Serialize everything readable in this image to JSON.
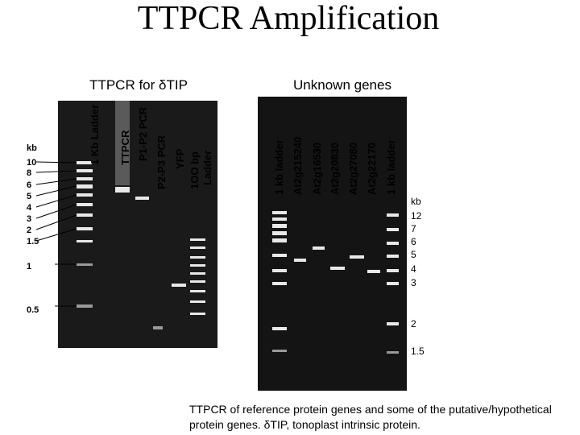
{
  "header": {
    "title": "TTPCR Amplification"
  },
  "left_panel": {
    "title": "TTPCR for δTIP",
    "lanes": [
      "1 Kb Ladder",
      "TTPCR",
      "P1-P2 PCR",
      "P2-P3 PCR",
      "YFP",
      "1OO bp",
      "Ladder"
    ],
    "size_unit": "kb",
    "sizes": [
      "10",
      "8",
      "6",
      "5",
      "4",
      "3",
      "2",
      "1.5",
      "1",
      "0.5"
    ]
  },
  "right_panel": {
    "title": "Unknown genes",
    "lanes": [
      "1 kb ladder",
      "At2g215240",
      "At2g16530",
      "At2g20830",
      "At2g27080",
      "At2g22170",
      "1 kb ladder"
    ],
    "size_unit": "kb",
    "sizes": [
      "12",
      "7",
      "6",
      "5",
      "4",
      "3",
      "2",
      "1.5"
    ]
  },
  "caption": [
    "TTPCR of reference protein genes and some of the putative/hypothetical",
    "protein genes. δTIP, tonoplast intrinsic protein."
  ]
}
